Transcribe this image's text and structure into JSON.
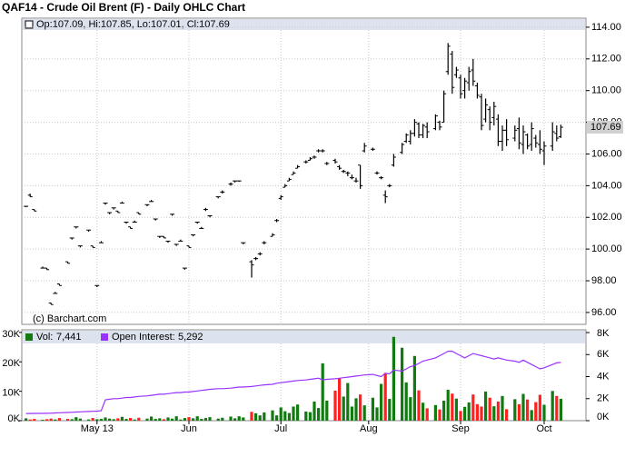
{
  "chart_data": {
    "type": "ohlc",
    "title": "QAF14 - Crude Oil Brent (F) - Daily OHLC Chart",
    "info": "Op:107.09, Hi:107.85, Lo:107.01, Cl:107.69",
    "credit": "(c) Barchart.com",
    "color": "#000000",
    "grid": true,
    "x": [
      1,
      2,
      3,
      5,
      6,
      7,
      8,
      9,
      11,
      12,
      13,
      14,
      16,
      17,
      18,
      19,
      20,
      21,
      22,
      23,
      24,
      25,
      26,
      27,
      28,
      30,
      31,
      32,
      33,
      34,
      35,
      36,
      37,
      38,
      39,
      40,
      41,
      42,
      43,
      44,
      45,
      47,
      48,
      50,
      51,
      52,
      53,
      55,
      56,
      57,
      58,
      60,
      61,
      62,
      63,
      64,
      65,
      66,
      68,
      69,
      70,
      71,
      72,
      73,
      75,
      76,
      77,
      78,
      79,
      80,
      81,
      82,
      84,
      85,
      86,
      87,
      88,
      89,
      91,
      92,
      93,
      94,
      95,
      96,
      97,
      99,
      100,
      101,
      102,
      103,
      104,
      105,
      106,
      107,
      108,
      109,
      110,
      111,
      112,
      113,
      114,
      115,
      116,
      118,
      119,
      120,
      121,
      122,
      123,
      124,
      125,
      127,
      128,
      129
    ],
    "bars": [
      [
        102.7,
        102.7,
        102.7,
        102.7
      ],
      [
        103.4,
        103.5,
        103.3,
        103.3
      ],
      [
        102.5,
        102.5,
        102.4,
        102.4
      ],
      [
        98.8,
        98.9,
        98.8,
        98.8
      ],
      [
        98.8,
        98.8,
        98.7,
        98.7
      ],
      [
        96.6,
        96.6,
        96.5,
        96.5
      ],
      [
        97.2,
        97.3,
        97.2,
        97.2
      ],
      [
        97.8,
        97.8,
        97.7,
        97.7
      ],
      [
        99.2,
        99.2,
        99.1,
        99.1
      ],
      [
        100.7,
        100.7,
        100.6,
        100.7
      ],
      [
        101.4,
        101.4,
        101.3,
        101.4
      ],
      [
        100.2,
        100.2,
        100.1,
        100.2
      ],
      [
        101.2,
        101.2,
        101.1,
        101.2
      ],
      [
        100.2,
        100.2,
        100.1,
        100.1
      ],
      [
        97.7,
        97.7,
        97.6,
        97.7
      ],
      [
        100.4,
        100.5,
        100.4,
        100.4
      ],
      [
        102.9,
        102.9,
        102.8,
        102.9
      ],
      [
        102.3,
        102.3,
        102.2,
        102.3
      ],
      [
        102.6,
        102.6,
        102.5,
        102.6
      ],
      [
        102.4,
        102.4,
        102.3,
        102.3
      ],
      [
        102.9,
        103.0,
        102.9,
        102.9
      ],
      [
        101.7,
        101.7,
        101.6,
        101.7
      ],
      [
        101.4,
        101.4,
        101.3,
        101.3
      ],
      [
        101.7,
        101.8,
        101.7,
        101.7
      ],
      [
        102.3,
        102.3,
        102.2,
        102.2
      ],
      [
        102.8,
        102.8,
        102.7,
        102.8
      ],
      [
        103.0,
        103.1,
        103.0,
        103.0
      ],
      [
        101.9,
        101.9,
        101.8,
        101.9
      ],
      [
        100.8,
        100.8,
        100.7,
        100.8
      ],
      [
        100.8,
        100.8,
        100.7,
        100.7
      ],
      [
        100.5,
        100.5,
        100.4,
        100.5
      ],
      [
        102.2,
        102.2,
        102.1,
        102.2
      ],
      [
        100.3,
        100.3,
        100.2,
        100.3
      ],
      [
        100.5,
        100.6,
        100.5,
        100.5
      ],
      [
        98.8,
        98.8,
        98.7,
        98.8
      ],
      [
        100.2,
        100.2,
        100.1,
        100.1
      ],
      [
        100.9,
        100.9,
        100.8,
        100.9
      ],
      [
        101.7,
        101.7,
        101.6,
        101.7
      ],
      [
        101.3,
        101.4,
        101.3,
        101.3
      ],
      [
        102.5,
        102.6,
        102.4,
        102.5
      ],
      [
        102.1,
        102.1,
        102.0,
        102.1
      ],
      [
        103.3,
        103.3,
        103.2,
        103.3
      ],
      [
        103.6,
        103.7,
        103.5,
        103.6
      ],
      [
        104.1,
        104.2,
        104.0,
        104.1
      ],
      [
        104.3,
        104.3,
        104.2,
        104.3
      ],
      [
        104.3,
        104.3,
        104.3,
        104.3
      ],
      [
        100.4,
        100.4,
        100.3,
        100.4
      ],
      [
        99.2,
        99.3,
        98.2,
        99.0
      ],
      [
        99.4,
        99.5,
        99.3,
        99.4
      ],
      [
        99.7,
        99.8,
        99.6,
        99.7
      ],
      [
        100.4,
        100.5,
        100.3,
        100.4
      ],
      [
        100.8,
        101.0,
        100.8,
        100.9
      ],
      [
        101.8,
        101.9,
        101.7,
        101.8
      ],
      [
        103.2,
        103.4,
        103.1,
        103.3
      ],
      [
        103.9,
        104.1,
        103.9,
        104.0
      ],
      [
        104.3,
        104.5,
        104.3,
        104.4
      ],
      [
        104.7,
        104.9,
        104.7,
        104.8
      ],
      [
        105.1,
        105.3,
        105.1,
        105.2
      ],
      [
        105.5,
        105.6,
        105.4,
        105.5
      ],
      [
        105.6,
        105.8,
        105.6,
        105.7
      ],
      [
        105.8,
        105.9,
        105.7,
        105.8
      ],
      [
        106.2,
        106.3,
        106.1,
        106.2
      ],
      [
        106.2,
        106.3,
        106.1,
        106.2
      ],
      [
        105.4,
        105.5,
        105.3,
        105.4
      ],
      [
        105.6,
        105.7,
        105.4,
        105.5
      ],
      [
        105.2,
        105.3,
        105.0,
        105.1
      ],
      [
        104.9,
        105.0,
        104.8,
        104.9
      ],
      [
        104.8,
        104.9,
        104.6,
        104.8
      ],
      [
        104.5,
        104.7,
        104.4,
        104.5
      ],
      [
        104.3,
        104.5,
        104.2,
        104.3
      ],
      [
        105.3,
        105.3,
        103.8,
        104.0
      ],
      [
        106.2,
        106.7,
        106.1,
        106.5
      ],
      [
        106.3,
        106.4,
        106.2,
        106.3
      ],
      [
        104.8,
        104.9,
        104.7,
        104.8
      ],
      [
        104.5,
        104.6,
        104.4,
        104.5
      ],
      [
        103.4,
        103.7,
        102.9,
        103.3
      ],
      [
        104.0,
        104.1,
        103.9,
        104.0
      ],
      [
        105.3,
        106.0,
        105.2,
        105.8
      ],
      [
        106.1,
        106.7,
        106.0,
        106.6
      ],
      [
        106.8,
        107.3,
        106.7,
        107.2
      ],
      [
        106.8,
        107.5,
        106.6,
        107.3
      ],
      [
        107.3,
        108.2,
        107.1,
        108.0
      ],
      [
        107.9,
        108.0,
        107.0,
        107.2
      ],
      [
        107.2,
        107.9,
        107.0,
        107.8
      ],
      [
        107.7,
        108.0,
        107.0,
        107.4
      ],
      [
        107.6,
        108.5,
        107.5,
        108.4
      ],
      [
        108.0,
        108.1,
        107.5,
        107.7
      ],
      [
        108.0,
        110.0,
        108.0,
        109.8
      ],
      [
        111.2,
        113.0,
        111.0,
        112.8
      ],
      [
        112.3,
        112.5,
        109.8,
        110.2
      ],
      [
        111.0,
        111.5,
        110.8,
        111.3
      ],
      [
        110.8,
        111.0,
        109.5,
        109.8
      ],
      [
        110.0,
        110.8,
        109.5,
        110.6
      ],
      [
        110.5,
        111.5,
        110.0,
        111.2
      ],
      [
        111.3,
        112.0,
        110.3,
        110.6
      ],
      [
        110.3,
        110.5,
        109.5,
        109.7
      ],
      [
        109.6,
        109.8,
        107.5,
        107.8
      ],
      [
        108.2,
        109.5,
        108.0,
        109.1
      ],
      [
        108.8,
        109.0,
        107.5,
        108.0
      ],
      [
        108.3,
        109.3,
        107.8,
        109.0
      ],
      [
        108.2,
        108.5,
        106.5,
        106.8
      ],
      [
        106.8,
        107.8,
        106.2,
        107.5
      ],
      [
        107.5,
        108.2,
        106.5,
        106.9
      ],
      [
        107.0,
        107.8,
        106.8,
        107.5
      ],
      [
        107.6,
        108.3,
        106.3,
        106.7
      ],
      [
        106.6,
        107.8,
        106.0,
        107.4
      ],
      [
        107.2,
        107.3,
        106.3,
        106.5
      ],
      [
        106.6,
        108.0,
        106.2,
        107.6
      ],
      [
        107.0,
        107.2,
        106.4,
        106.7
      ],
      [
        106.6,
        107.5,
        106.0,
        106.3
      ],
      [
        106.2,
        106.8,
        105.3,
        106.5
      ],
      [
        106.5,
        108.0,
        106.2,
        107.4
      ],
      [
        107.3,
        107.8,
        106.8,
        107.0
      ],
      [
        107.09,
        107.85,
        107.01,
        107.69
      ]
    ],
    "xlim": [
      0,
      135
    ],
    "xticks": [
      {
        "value": 18,
        "label": "May 13"
      },
      {
        "value": 40,
        "label": "Jun"
      },
      {
        "value": 62,
        "label": "Jul"
      },
      {
        "value": 83,
        "label": "Aug"
      },
      {
        "value": 105,
        "label": "Sep"
      },
      {
        "value": 125,
        "label": "Oct"
      }
    ],
    "ylim": [
      95.25,
      114.57
    ],
    "yticks": [
      {
        "value": 96,
        "label": "96.00"
      },
      {
        "value": 98,
        "label": "98.00"
      },
      {
        "value": 100,
        "label": "100.00"
      },
      {
        "value": 102,
        "label": "102.00"
      },
      {
        "value": 104,
        "label": "104.00"
      },
      {
        "value": 106,
        "label": "106.00"
      },
      {
        "value": 108,
        "label": "108.00"
      },
      {
        "value": 110,
        "label": "110.00"
      },
      {
        "value": 112,
        "label": "112.00"
      },
      {
        "value": 114,
        "label": "114.00"
      }
    ],
    "volume": {
      "name": "Vol:",
      "last_label": "7,441",
      "up_color": "#117a11",
      "down_color": "#ff2020",
      "values": [
        800,
        400,
        600,
        300,
        500,
        700,
        400,
        900,
        600,
        500,
        1200,
        700,
        400,
        900,
        500,
        600,
        1100,
        700,
        500,
        800,
        1300,
        600,
        900,
        400,
        1000,
        700,
        1400,
        600,
        800,
        500,
        1100,
        700,
        1500,
        400,
        900,
        1200,
        800,
        1500,
        600,
        900,
        1200,
        700,
        1000,
        1400,
        800,
        1500,
        1100,
        3000,
        2500,
        1800,
        2800,
        3500,
        1800,
        4500,
        3200,
        2600,
        4800,
        5500,
        3100,
        2900,
        6500,
        4300,
        19500,
        6800,
        10200,
        14500,
        8200,
        12800,
        4800,
        7600,
        8900,
        5200,
        7800,
        4500,
        12500,
        16200,
        7400,
        28500,
        24800,
        13000,
        8000,
        22000,
        10300,
        6100,
        4200,
        5300,
        3800,
        6800,
        10500,
        9200,
        7500,
        3300,
        4700,
        6200,
        8900,
        5600,
        4800,
        9900,
        7800,
        4900,
        6500,
        8400,
        3900,
        7300,
        5600,
        9100,
        7200,
        3600,
        6300,
        8800,
        5400,
        10100,
        8400,
        7441
      ]
    },
    "open_interest": {
      "name": "Open Interest:",
      "last_label": "5,292",
      "color": "#9933ff",
      "values": [
        650,
        650,
        660,
        660,
        670,
        680,
        700,
        720,
        740,
        760,
        780,
        800,
        830,
        850,
        870,
        900,
        1900,
        1950,
        2000,
        2000,
        2050,
        2100,
        2100,
        2150,
        2200,
        2250,
        2300,
        2350,
        2400,
        2400,
        2450,
        2500,
        2550,
        2550,
        2600,
        2600,
        2650,
        2700,
        2750,
        2800,
        2850,
        2900,
        2900,
        2950,
        3000,
        3050,
        3050,
        3100,
        3150,
        3200,
        3250,
        3300,
        3400,
        3450,
        3500,
        3550,
        3600,
        3650,
        3700,
        3750,
        3800,
        3850,
        3700,
        3750,
        3800,
        3850,
        3900,
        3950,
        4000,
        4050,
        4100,
        4150,
        4200,
        4100,
        4000,
        4300,
        4250,
        4600,
        4500,
        4700,
        4900,
        5000,
        5200,
        5400,
        5500,
        5700,
        5900,
        6100,
        6300,
        6300,
        6100,
        5900,
        5700,
        5900,
        6100,
        6000,
        5900,
        5800,
        5700,
        5600,
        5700,
        5600,
        5500,
        5400,
        5300,
        5500,
        5300,
        5100,
        4900,
        4700,
        4800,
        5100,
        5250,
        5292
      ]
    },
    "vol_ylim": [
      0,
      30900
    ],
    "vol_yticks": [
      {
        "value": 0,
        "label": "0K"
      },
      {
        "value": 10000,
        "label": "10K"
      },
      {
        "value": 20000,
        "label": "20K"
      },
      {
        "value": 30000,
        "label": "30K"
      }
    ],
    "oi_ylim": [
      0,
      8250
    ],
    "oi_yticks": [
      {
        "value": 0,
        "label": "0K"
      },
      {
        "value": 2000,
        "label": "2K"
      },
      {
        "value": 4000,
        "label": "4K"
      },
      {
        "value": 6000,
        "label": "6K"
      },
      {
        "value": 8000,
        "label": "8K"
      }
    ]
  }
}
